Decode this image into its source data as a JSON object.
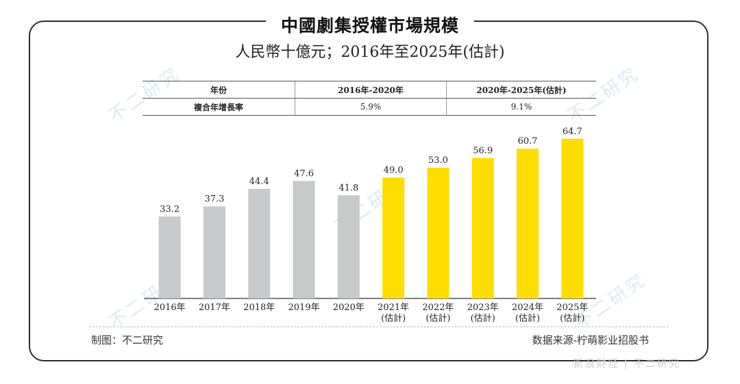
{
  "title": "中國劇集授權市場規模",
  "subtitle": "人民幣十億元；2016年至2025年(估計)",
  "cagr_table": {
    "header": [
      "年份",
      "2016年-2020年",
      "2020年-2025年(估計)"
    ],
    "row": [
      "複合年增長率",
      "5.9%",
      "9.1%"
    ]
  },
  "chart_data": {
    "type": "bar",
    "title": "中國劇集授權市場規模",
    "categories": [
      "2016年",
      "2017年",
      "2018年",
      "2019年",
      "2020年",
      "2021年",
      "2022年",
      "2023年",
      "2024年",
      "2025年"
    ],
    "category_notes": [
      "",
      "",
      "",
      "",
      "",
      "(估計)",
      "(估計)",
      "(估計)",
      "(估計)",
      "(估計)"
    ],
    "values": [
      33.2,
      37.3,
      44.4,
      47.6,
      41.8,
      49.0,
      53.0,
      56.9,
      60.7,
      64.7
    ],
    "value_labels": [
      "33.2",
      "37.3",
      "44.4",
      "47.6",
      "41.8",
      "49.0",
      "53.0",
      "56.9",
      "60.7",
      "64.7"
    ],
    "ylim": [
      0,
      70
    ],
    "xlabel": "",
    "ylabel": "",
    "grid": false,
    "colors": {
      "historical": "#c8c9cb",
      "forecast": "#ffdd00",
      "axis": "#333333"
    },
    "forecast_start_index": 5
  },
  "watermark_text": "不二研究",
  "footer": {
    "left": "制图：不二研究",
    "right": "数据来源-柠萌影业招股书"
  },
  "corner_text": "新浪财经 | 不二研究"
}
